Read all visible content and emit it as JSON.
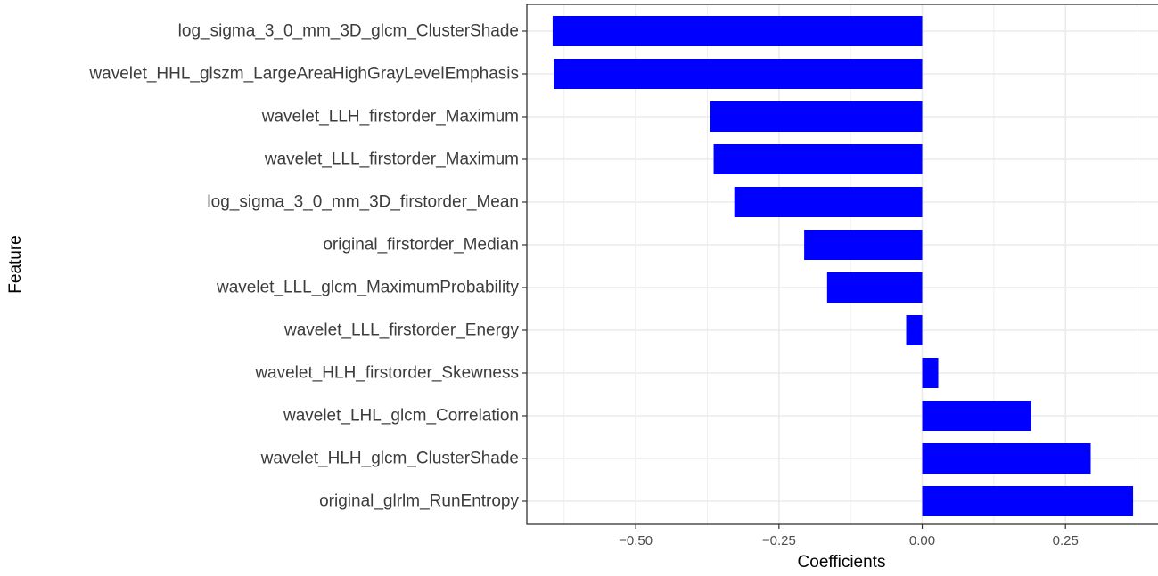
{
  "chart_data": {
    "type": "bar",
    "orientation": "horizontal",
    "title": "",
    "xlabel": "Coefficients",
    "ylabel": "Feature",
    "categories": [
      "log_sigma_3_0_mm_3D_glcm_ClusterShade",
      "wavelet_HHL_glszm_LargeAreaHighGrayLevelEmphasis",
      "wavelet_LLH_firstorder_Maximum",
      "wavelet_LLL_firstorder_Maximum",
      "log_sigma_3_0_mm_3D_firstorder_Mean",
      "original_firstorder_Median",
      "wavelet_LLL_glcm_MaximumProbability",
      "wavelet_LLL_firstorder_Energy",
      "wavelet_HLH_firstorder_Skewness",
      "wavelet_LHL_glcm_Correlation",
      "wavelet_HLH_glcm_ClusterShade",
      "original_glrlm_RunEntropy"
    ],
    "values": [
      -0.645,
      -0.643,
      -0.37,
      -0.364,
      -0.328,
      -0.206,
      -0.166,
      -0.028,
      0.028,
      0.19,
      0.294,
      0.368
    ],
    "xlim": [
      -0.69,
      0.413
    ],
    "xticks": [
      -0.5,
      -0.25,
      0.0,
      0.25
    ],
    "xtick_labels": [
      "−0.50",
      "−0.25",
      "0.00",
      "0.25"
    ],
    "grid": true,
    "bar_color": "#0000ff",
    "grid_color": "#ebebeb",
    "panel_border_color": "#333333"
  }
}
